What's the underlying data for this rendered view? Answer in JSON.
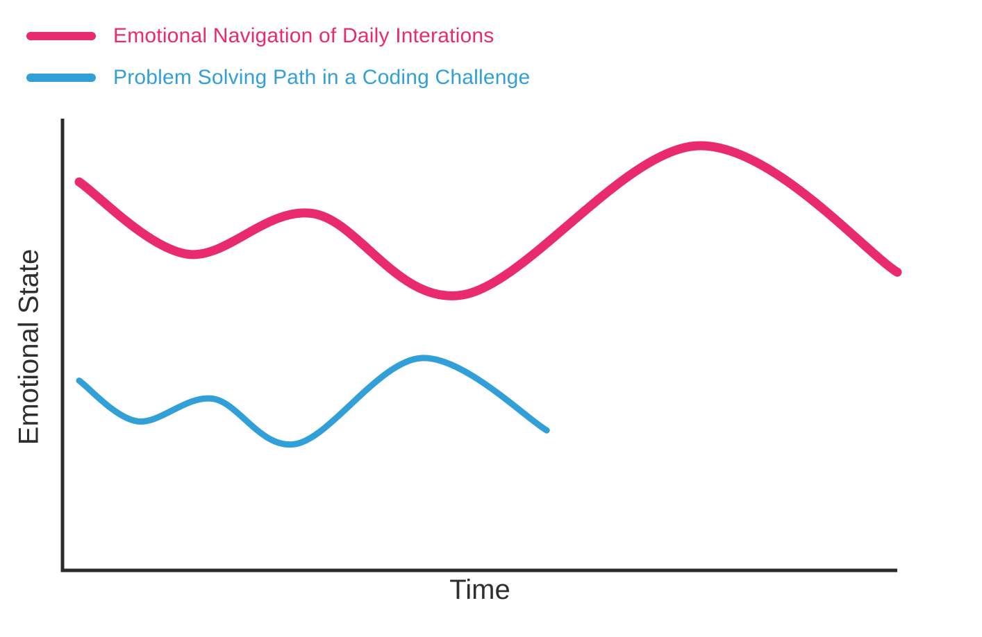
{
  "legend": {
    "items": [
      {
        "label": "Emotional Navigation of Daily Interations"
      },
      {
        "label": "Problem Solving Path in a Coding Challenge"
      }
    ]
  },
  "chart_data": {
    "type": "line",
    "title": "",
    "xlabel": "Time",
    "ylabel": "Emotional State",
    "x_range": [
      0,
      10
    ],
    "y_range": [
      0,
      10
    ],
    "grid": false,
    "axis_ticks": "none",
    "legend_position": "top-left",
    "axis_color": "#2b2b2b",
    "series": [
      {
        "name": "Emotional Navigation of Daily Interations",
        "color": "#EA2A6F",
        "stroke_width": 13,
        "points": [
          [
            0.2,
            8.6
          ],
          [
            1.5,
            7.0
          ],
          [
            3.0,
            7.9
          ],
          [
            4.8,
            6.1
          ],
          [
            7.6,
            9.4
          ],
          [
            10.0,
            6.6
          ]
        ]
      },
      {
        "name": "Problem Solving Path in a Coding Challenge",
        "color": "#32A0D8",
        "stroke_width": 9,
        "points": [
          [
            0.2,
            4.2
          ],
          [
            0.9,
            3.3
          ],
          [
            1.8,
            3.8
          ],
          [
            2.8,
            2.8
          ],
          [
            4.3,
            4.7
          ],
          [
            5.8,
            3.1
          ]
        ]
      }
    ]
  }
}
